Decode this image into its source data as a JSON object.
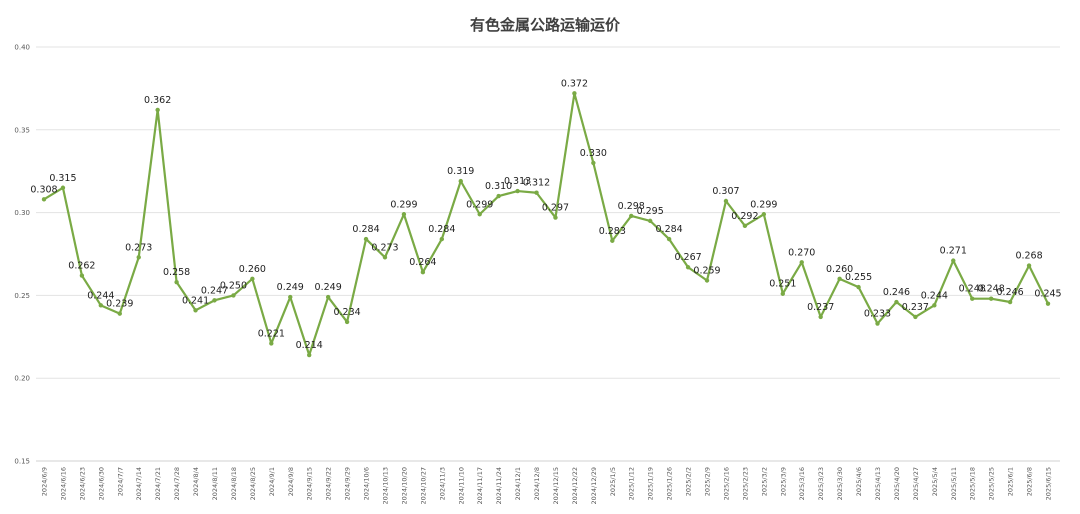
{
  "chart_data": {
    "type": "line",
    "title": "有色金属公路运输运价",
    "xlabel": "",
    "ylabel": "",
    "ylim": [
      0.15,
      0.4
    ],
    "yticks": [
      "0.15",
      "0.20",
      "0.25",
      "0.30",
      "0.35",
      "0.40"
    ],
    "grid": true,
    "legend": "none",
    "colors": {
      "series": "#7aaa45",
      "grid": "#e3e3e3",
      "text": "#404040"
    },
    "categories": [
      "2024/6/9",
      "2024/6/16",
      "2024/6/23",
      "2024/6/30",
      "2024/7/7",
      "2024/7/14",
      "2024/7/21",
      "2024/7/28",
      "2024/8/4",
      "2024/8/11",
      "2024/8/18",
      "2024/8/25",
      "2024/9/1",
      "2024/9/8",
      "2024/9/15",
      "2024/9/22",
      "2024/9/29",
      "2024/10/6",
      "2024/10/13",
      "2024/10/20",
      "2024/10/27",
      "2024/11/3",
      "2024/11/10",
      "2024/11/17",
      "2024/11/24",
      "2024/12/1",
      "2024/12/8",
      "2024/12/15",
      "2024/12/22",
      "2024/12/29",
      "2025/1/5",
      "2025/1/12",
      "2025/1/19",
      "2025/1/26",
      "2025/2/2",
      "2025/2/9",
      "2025/2/16",
      "2025/2/23",
      "2025/3/2",
      "2025/3/9",
      "2025/3/16",
      "2025/3/23",
      "2025/3/30",
      "2025/4/6",
      "2025/4/13",
      "2025/4/20",
      "2025/4/27",
      "2025/5/4",
      "2025/5/11",
      "2025/5/18",
      "2025/5/25",
      "2025/6/1",
      "2025/6/8",
      "2025/6/15"
    ],
    "series": [
      {
        "values": [
          0.308,
          0.315,
          0.262,
          0.244,
          0.239,
          0.273,
          0.362,
          0.258,
          0.241,
          0.247,
          0.25,
          0.26,
          0.221,
          0.249,
          0.214,
          0.249,
          0.234,
          0.284,
          0.273,
          0.299,
          0.264,
          0.284,
          0.319,
          0.299,
          0.31,
          0.313,
          0.312,
          0.297,
          0.372,
          0.33,
          0.283,
          0.298,
          0.295,
          0.284,
          0.267,
          0.259,
          0.307,
          0.292,
          0.299,
          0.251,
          0.27,
          0.237,
          0.26,
          0.255,
          0.233,
          0.246,
          0.237,
          0.244,
          0.271,
          0.248,
          0.248,
          0.246,
          0.268,
          0.245
        ],
        "labels": [
          "0.308",
          "0.315",
          "0.262",
          "0.244",
          "0.239",
          "0.273",
          "0.362",
          "0.258",
          "0.241",
          "0.247",
          "0.250",
          "0.260",
          "0.221",
          "0.249",
          "0.214",
          "0.249",
          "0.234",
          "0.284",
          "0.273",
          "0.299",
          "0.264",
          "0.284",
          "0.319",
          "0.299",
          "0.310",
          "0.313",
          "0.312",
          "0.297",
          "0.372",
          "0.330",
          "0.283",
          "0.298",
          "0.295",
          "0.284",
          "0.267",
          "0.259",
          "0.307",
          "0.292",
          "0.299",
          "0.251",
          "0.270",
          "0.237",
          "0.260",
          "0.255",
          "0.233",
          "0.246",
          "0.237",
          "0.244",
          "0.271",
          "0.248",
          "0.248",
          "0.246",
          "0.268",
          "0.245"
        ]
      }
    ]
  }
}
